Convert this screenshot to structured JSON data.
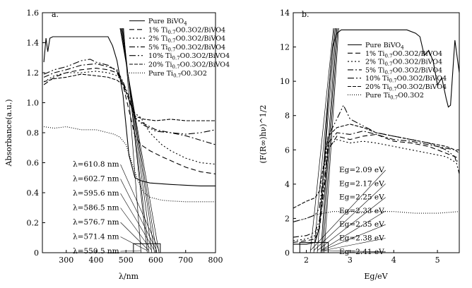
{
  "chart_data": [
    {
      "panel_label": "a.",
      "type": "line",
      "title": "",
      "xlabel": "λ/nm",
      "ylabel": "Absorbance(a.u.)",
      "xlim": [
        220,
        800
      ],
      "ylim": [
        0,
        1.6
      ],
      "xticks": [
        300,
        400,
        500,
        600,
        700,
        800
      ],
      "yticks": [
        0,
        0.2,
        0.4,
        0.6,
        0.8,
        1.0,
        1.2,
        1.4,
        1.6
      ],
      "legend_position": "top-right",
      "series": [
        {
          "name": "Pure BiVO",
          "sub": "4",
          "tail": "",
          "dash": "",
          "x": [
            225,
            232,
            238,
            245,
            255,
            270,
            300,
            350,
            400,
            440,
            455,
            470,
            490,
            510,
            530,
            550,
            580,
            650,
            700,
            750,
            800
          ],
          "y": [
            1.27,
            1.43,
            1.34,
            1.43,
            1.44,
            1.44,
            1.44,
            1.44,
            1.44,
            1.44,
            1.38,
            1.28,
            1.05,
            0.65,
            0.5,
            0.48,
            0.465,
            0.455,
            0.45,
            0.445,
            0.445
          ]
        },
        {
          "name": "1% Ti",
          "sub": "0.7",
          "tail": "O0.3O2/BiVO4",
          "dash": "7,4",
          "x": [
            225,
            260,
            300,
            350,
            400,
            440,
            470,
            490,
            510,
            530,
            550,
            580,
            620,
            700,
            750,
            800
          ],
          "y": [
            1.12,
            1.17,
            1.2,
            1.22,
            1.23,
            1.22,
            1.2,
            1.12,
            0.95,
            0.78,
            0.72,
            0.68,
            0.64,
            0.57,
            0.54,
            0.525
          ]
        },
        {
          "name": "2% Ti",
          "sub": "0.7",
          "tail": "O0.3O2/BiVO4",
          "dash": "2,3",
          "x": [
            225,
            260,
            300,
            350,
            400,
            440,
            470,
            490,
            510,
            530,
            550,
            580,
            620,
            650,
            700,
            750,
            800
          ],
          "y": [
            1.14,
            1.18,
            1.2,
            1.2,
            1.21,
            1.2,
            1.18,
            1.14,
            1.02,
            0.93,
            0.9,
            0.8,
            0.72,
            0.68,
            0.63,
            0.6,
            0.59
          ]
        },
        {
          "name": "5% Ti",
          "sub": "0.7",
          "tail": "O0.3O2/BiVO4",
          "dash": "8,3,2,3",
          "x": [
            225,
            260,
            300,
            350,
            400,
            440,
            470,
            490,
            510,
            530,
            560,
            600,
            650,
            700,
            750,
            800
          ],
          "y": [
            1.17,
            1.2,
            1.22,
            1.25,
            1.26,
            1.24,
            1.22,
            1.14,
            1.04,
            0.9,
            0.86,
            0.82,
            0.8,
            0.78,
            0.75,
            0.72
          ]
        },
        {
          "name": "10% Ti",
          "sub": "0.7",
          "tail": "O0.3O2/BiVO4",
          "dash": "9,3,2,3,2,3",
          "x": [
            225,
            260,
            300,
            350,
            380,
            400,
            440,
            470,
            490,
            510,
            530,
            560,
            600,
            650,
            700,
            750,
            800
          ],
          "y": [
            1.19,
            1.22,
            1.24,
            1.28,
            1.29,
            1.27,
            1.25,
            1.21,
            1.13,
            1.02,
            0.9,
            0.85,
            0.81,
            0.8,
            0.79,
            0.8,
            0.82
          ]
        },
        {
          "name": "20% Ti",
          "sub": "0.7",
          "tail": "O0.3O2/BiVO4",
          "dash": "5,2",
          "x": [
            225,
            260,
            300,
            350,
            400,
            440,
            470,
            490,
            510,
            530,
            560,
            600,
            650,
            700,
            750,
            800
          ],
          "y": [
            1.14,
            1.16,
            1.17,
            1.19,
            1.18,
            1.17,
            1.15,
            1.12,
            1.02,
            0.91,
            0.89,
            0.88,
            0.89,
            0.88,
            0.88,
            0.88
          ]
        },
        {
          "name": "Pure Ti",
          "sub": "0.7",
          "tail": "O0.3O2",
          "dash": "1,2",
          "x": [
            225,
            260,
            300,
            350,
            400,
            440,
            460,
            480,
            500,
            520,
            540,
            560,
            580,
            600,
            620,
            650,
            700,
            750,
            800
          ],
          "y": [
            0.84,
            0.83,
            0.84,
            0.82,
            0.82,
            0.8,
            0.79,
            0.77,
            0.72,
            0.6,
            0.48,
            0.4,
            0.37,
            0.36,
            0.35,
            0.345,
            0.34,
            0.34,
            0.34
          ]
        }
      ],
      "annotations": [
        {
          "label": "λ=610.8 nm",
          "value_nm": 610.8,
          "row": 0
        },
        {
          "label": "λ=602.7 nm",
          "value_nm": 602.7,
          "row": 1
        },
        {
          "label": "λ=595.6 nm",
          "value_nm": 595.6,
          "row": 2
        },
        {
          "label": "λ=586.5 nm",
          "value_nm": 586.5,
          "row": 3
        },
        {
          "label": "λ=576.7 nm",
          "value_nm": 576.7,
          "row": 4
        },
        {
          "label": "λ=571.4 nm",
          "value_nm": 571.4,
          "row": 5
        },
        {
          "label": "λ=550.5 nm",
          "value_nm": 550.5,
          "row": 6
        }
      ],
      "fit_lines": [
        {
          "x0": 610.8,
          "xtop": 480
        },
        {
          "x0": 602.7,
          "xtop": 482
        },
        {
          "x0": 595.6,
          "xtop": 484
        },
        {
          "x0": 586.5,
          "xtop": 486
        },
        {
          "x0": 576.7,
          "xtop": 488
        },
        {
          "x0": 571.4,
          "xtop": 490
        },
        {
          "x0": 550.5,
          "xtop": 492
        }
      ],
      "zoom_box": {
        "x": [
          525,
          615
        ],
        "y": [
          -0.02,
          0.06
        ]
      }
    },
    {
      "panel_label": "b.",
      "type": "line",
      "title": "",
      "xlabel": "Eg/eV",
      "ylabel": "(F(R∞)hν)^1/2",
      "xlim": [
        1.7,
        5.5
      ],
      "ylim": [
        0,
        14
      ],
      "xticks": [
        2,
        3,
        4,
        5
      ],
      "yticks": [
        0,
        2,
        4,
        6,
        8,
        10,
        12,
        14
      ],
      "legend_position": "top-right",
      "series": [
        {
          "name": "Pure BiVO",
          "sub": "4",
          "tail": "",
          "dash": "",
          "x": [
            1.7,
            2.0,
            2.2,
            2.3,
            2.4,
            2.5,
            2.6,
            2.7,
            2.8,
            3.0,
            3.5,
            4.0,
            4.3,
            4.5,
            4.6,
            4.7,
            4.8,
            4.9,
            5.0,
            5.1,
            5.2,
            5.25,
            5.3,
            5.4,
            5.5
          ],
          "y": [
            0.5,
            0.5,
            0.6,
            1.5,
            5.0,
            9.0,
            12.0,
            12.8,
            13.0,
            13.0,
            13.0,
            13.0,
            13.0,
            12.8,
            12.6,
            11.5,
            11.8,
            11.2,
            9.8,
            10.2,
            9.0,
            8.5,
            8.6,
            12.4,
            10.5
          ]
        },
        {
          "name": "1% Ti",
          "sub": "0.7",
          "tail": "O0.3O2/BiVO4",
          "dash": "7,4",
          "x": [
            1.7,
            2.0,
            2.2,
            2.3,
            2.4,
            2.5,
            2.7,
            3.0,
            3.3,
            3.6,
            4.0,
            4.4,
            4.8,
            5.2,
            5.4,
            5.5
          ],
          "y": [
            0.6,
            0.7,
            0.8,
            1.4,
            3.5,
            6.0,
            6.8,
            6.6,
            6.8,
            6.9,
            6.5,
            6.4,
            6.2,
            5.8,
            5.6,
            5.5
          ]
        },
        {
          "name": "2% Ti",
          "sub": "0.7",
          "tail": "O0.3O2/BiVO4",
          "dash": "2,3",
          "x": [
            1.7,
            2.0,
            2.2,
            2.3,
            2.4,
            2.5,
            2.7,
            3.0,
            3.3,
            3.6,
            4.0,
            4.4,
            4.8,
            5.2,
            5.4,
            5.5
          ],
          "y": [
            0.7,
            0.8,
            1.0,
            1.6,
            3.6,
            6.2,
            6.6,
            6.4,
            6.5,
            6.4,
            6.2,
            6.0,
            5.8,
            5.6,
            5.3,
            5.4
          ]
        },
        {
          "name": "5% Ti",
          "sub": "0.7",
          "tail": "O0.3O2/BiVO4",
          "dash": "8,3,2,3",
          "x": [
            1.7,
            2.0,
            2.2,
            2.3,
            2.4,
            2.5,
            2.7,
            3.0,
            3.3,
            3.6,
            4.0,
            4.4,
            4.8,
            5.2,
            5.4,
            5.5
          ],
          "y": [
            0.9,
            1.0,
            1.2,
            1.9,
            4.0,
            6.4,
            7.0,
            6.9,
            7.1,
            6.9,
            6.6,
            6.5,
            6.3,
            6.1,
            6.0,
            6.0
          ]
        },
        {
          "name": "10% Ti",
          "sub": "0.7",
          "tail": "O0.3O2/BiVO4",
          "dash": "9,3,2,3,2,3",
          "x": [
            1.7,
            2.0,
            2.2,
            2.3,
            2.4,
            2.5,
            2.7,
            2.85,
            3.0,
            3.3,
            3.6,
            4.0,
            4.4,
            4.8,
            5.2,
            5.4,
            5.5
          ],
          "y": [
            1.8,
            2.0,
            2.2,
            2.6,
            4.8,
            6.8,
            7.8,
            8.6,
            7.8,
            7.4,
            7.0,
            6.8,
            6.6,
            6.4,
            6.0,
            5.6,
            4.6
          ]
        },
        {
          "name": "20% Ti",
          "sub": "0.7",
          "tail": "O0.3O2/BiVO4",
          "dash": "5,2",
          "x": [
            1.7,
            2.0,
            2.2,
            2.3,
            2.4,
            2.5,
            2.7,
            3.0,
            3.3,
            3.6,
            4.0,
            4.4,
            4.8,
            5.2,
            5.4,
            5.5
          ],
          "y": [
            2.6,
            3.0,
            3.2,
            3.6,
            5.2,
            6.8,
            7.3,
            7.5,
            7.3,
            7.0,
            6.8,
            6.6,
            6.4,
            6.2,
            6.0,
            5.8
          ]
        },
        {
          "name": "Pure Ti",
          "sub": "0.7",
          "tail": "O0.3O2",
          "dash": "1,2",
          "x": [
            1.7,
            2.0,
            2.2,
            2.4,
            2.6,
            3.0,
            3.5,
            4.0,
            4.5,
            5.0,
            5.5
          ],
          "y": [
            1.8,
            2.0,
            2.2,
            2.3,
            2.4,
            2.4,
            2.4,
            2.4,
            2.3,
            2.3,
            2.4
          ]
        }
      ],
      "annotations": [
        {
          "label": "Eg=2.09 eV",
          "value_ev": 2.09,
          "row": 0
        },
        {
          "label": "Eg=2.17 eV",
          "value_ev": 2.17,
          "row": 1
        },
        {
          "label": "Eg=2.25 eV",
          "value_ev": 2.25,
          "row": 2
        },
        {
          "label": "Eg=2.33 eV",
          "value_ev": 2.33,
          "row": 3
        },
        {
          "label": "Eg=2.35 eV",
          "value_ev": 2.35,
          "row": 4
        },
        {
          "label": "Eg=2.38 eV",
          "value_ev": 2.38,
          "row": 5
        },
        {
          "label": "Eg=2.41 eV",
          "value_ev": 2.41,
          "row": 6
        }
      ],
      "fit_lines": [
        {
          "x0": 2.09,
          "xtop": 2.62
        },
        {
          "x0": 2.17,
          "xtop": 2.64
        },
        {
          "x0": 2.25,
          "xtop": 2.66
        },
        {
          "x0": 2.33,
          "xtop": 2.68
        },
        {
          "x0": 2.35,
          "xtop": 2.7
        },
        {
          "x0": 2.38,
          "xtop": 2.72
        },
        {
          "x0": 2.41,
          "xtop": 2.74
        }
      ],
      "zoom_box": {
        "x": [
          1.85,
          2.5
        ],
        "y": [
          -0.2,
          0.6
        ]
      }
    }
  ]
}
